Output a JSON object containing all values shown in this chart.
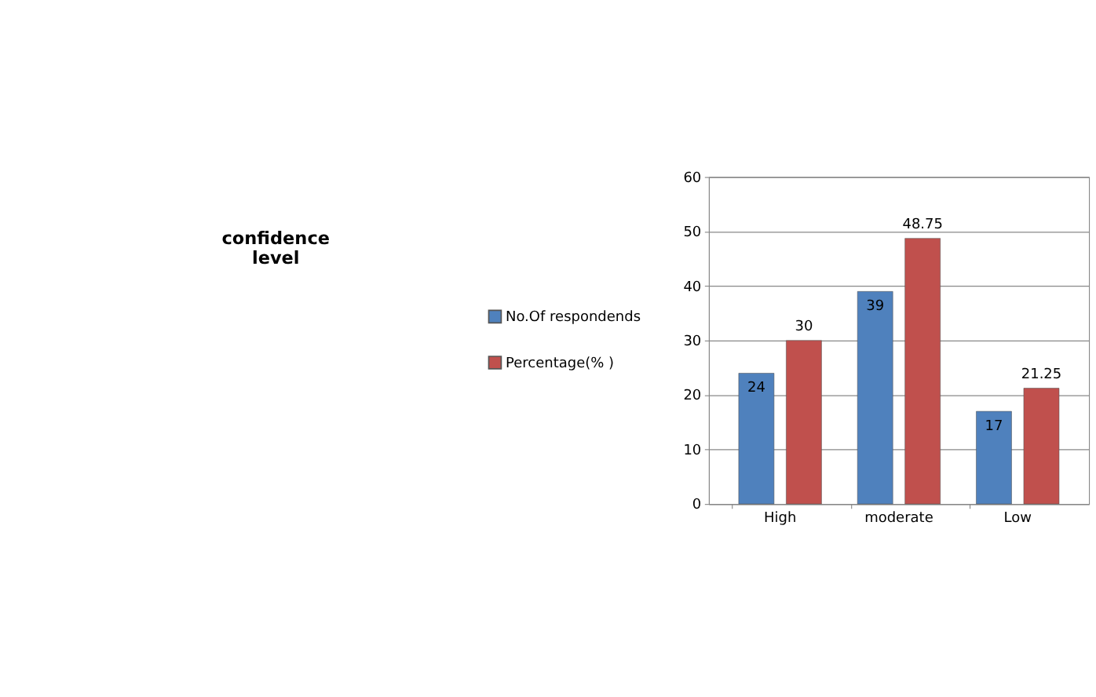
{
  "chart_data": {
    "type": "bar",
    "title": "confidence level",
    "categories": [
      "High",
      "moderate",
      "Low"
    ],
    "series": [
      {
        "name": "No.Of respondends",
        "color": "#4f81bd",
        "values": [
          24,
          39,
          17
        ]
      },
      {
        "name": "Percentage(% )",
        "color": "#c0504d",
        "values": [
          30,
          48.75,
          21.25
        ]
      }
    ],
    "ylim": [
      0,
      60
    ],
    "yticks": [
      0,
      10,
      20,
      30,
      40,
      50,
      60
    ],
    "grid": "y",
    "legend": "left",
    "data_labels": true
  }
}
